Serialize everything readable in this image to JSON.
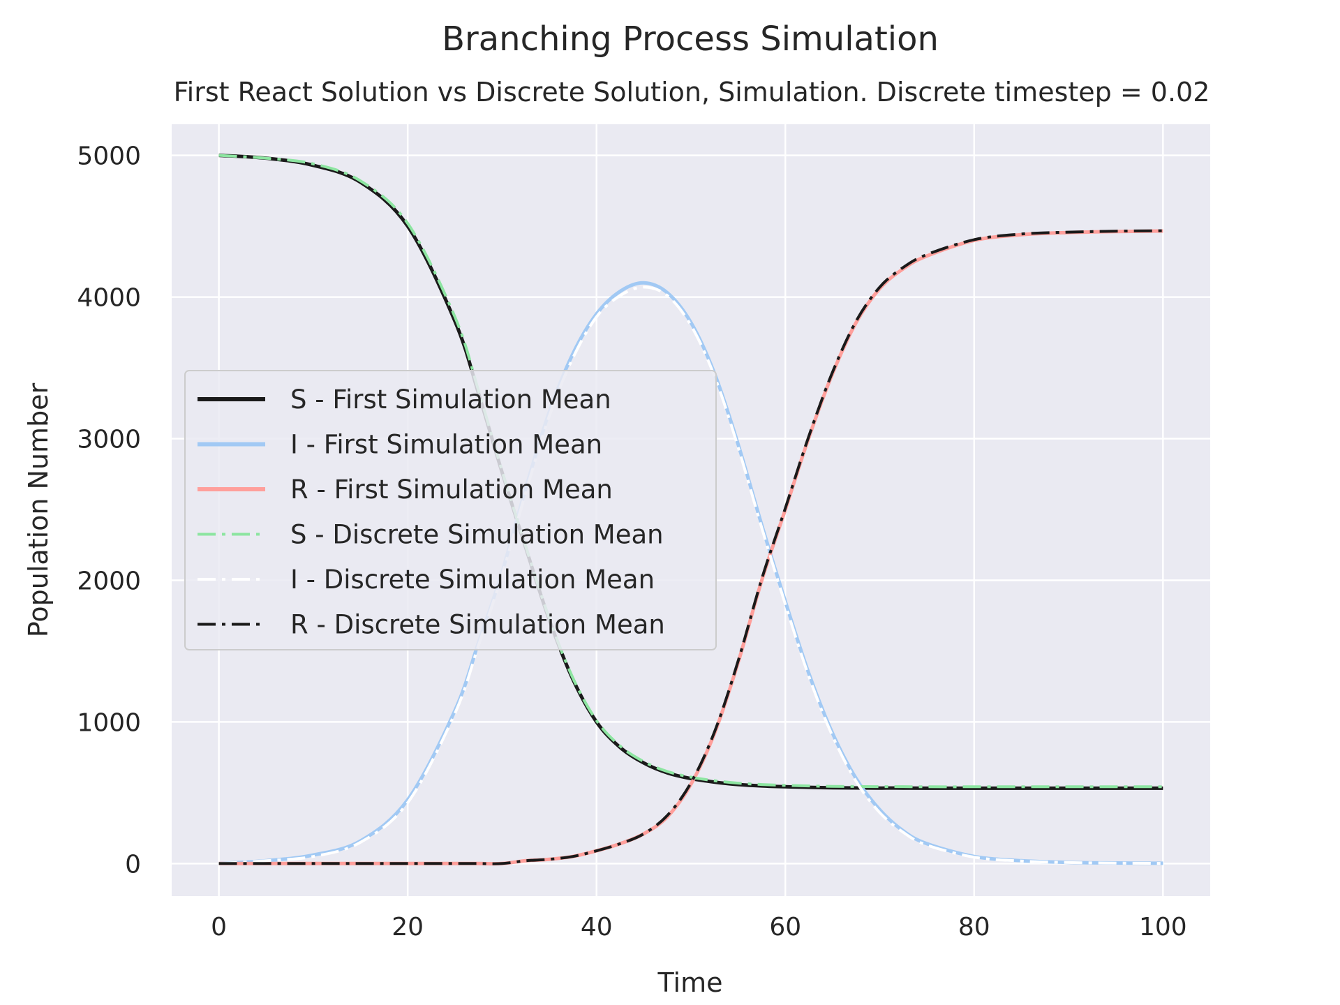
{
  "chart_data": {
    "type": "line",
    "title": "Branching Process Simulation",
    "subtitle": "First React Solution vs Discrete Solution, Simulation. Discrete timestep = 0.02",
    "xlabel": "Time",
    "ylabel": "Population Number",
    "xlim": [
      -5,
      105
    ],
    "ylim": [
      -230,
      5220
    ],
    "xticks": [
      0,
      20,
      40,
      60,
      80,
      100
    ],
    "yticks": [
      0,
      1000,
      2000,
      3000,
      4000,
      5000
    ],
    "grid": true,
    "legend_position": "center-left",
    "x": [
      0,
      5,
      10,
      15,
      20,
      25,
      27.5,
      30,
      32.5,
      35,
      37.5,
      40,
      42.5,
      45,
      47.5,
      50,
      52.5,
      55,
      57.5,
      60,
      62.5,
      65,
      67.5,
      70,
      72.5,
      75,
      80,
      85,
      90,
      95,
      100
    ],
    "series": [
      {
        "name": "S - First Simulation Mean",
        "color": "#1a1a1a",
        "dash": "solid",
        "width": 5,
        "values": [
          5000,
          4980,
          4930,
          4810,
          4500,
          3830,
          3320,
          2760,
          2230,
          1720,
          1300,
          1000,
          820,
          710,
          640,
          600,
          575,
          558,
          548,
          542,
          538,
          535,
          534,
          533,
          533,
          532,
          532,
          532,
          532,
          532,
          532
        ]
      },
      {
        "name": "I - First Simulation Mean",
        "color": "#a1c9f4",
        "dash": "solid",
        "width": 5,
        "values": [
          0,
          20,
          60,
          160,
          450,
          1080,
          1560,
          2060,
          2650,
          3190,
          3600,
          3880,
          4040,
          4100,
          4030,
          3820,
          3460,
          2960,
          2390,
          1850,
          1340,
          920,
          600,
          380,
          230,
          140,
          50,
          20,
          8,
          4,
          2
        ]
      },
      {
        "name": "R - First Simulation Mean",
        "color": "#ff9f9b",
        "dash": "solid",
        "width": 5,
        "values": [
          0,
          0,
          0,
          0,
          0,
          0,
          0,
          0,
          20,
          30,
          50,
          90,
          140,
          210,
          330,
          560,
          920,
          1420,
          2000,
          2500,
          3010,
          3460,
          3820,
          4060,
          4200,
          4290,
          4400,
          4440,
          4455,
          4462,
          4466
        ]
      },
      {
        "name": "S - Discrete Simulation Mean",
        "color": "#8de5a1",
        "dash": "dashdot",
        "width": 4,
        "values": [
          5000,
          4980,
          4940,
          4820,
          4520,
          3860,
          3340,
          2770,
          2240,
          1730,
          1310,
          1010,
          830,
          720,
          650,
          610,
          585,
          568,
          558,
          552,
          548,
          545,
          544,
          543,
          543,
          542,
          542,
          542,
          542,
          542,
          542
        ]
      },
      {
        "name": "I - Discrete Simulation Mean",
        "color": "#ffffff",
        "dash": "dashdot",
        "width": 4,
        "values": [
          0,
          20,
          50,
          150,
          430,
          1060,
          1540,
          2040,
          2620,
          3160,
          3570,
          3860,
          4010,
          4070,
          4010,
          3800,
          3440,
          2940,
          2370,
          1830,
          1320,
          900,
          580,
          360,
          220,
          130,
          45,
          18,
          7,
          3,
          1
        ]
      },
      {
        "name": "R - Discrete Simulation Mean",
        "color": "#1a1a1a",
        "dash": "dashdot",
        "width": 4,
        "values": [
          0,
          0,
          0,
          0,
          0,
          0,
          0,
          0,
          20,
          30,
          50,
          90,
          140,
          210,
          340,
          570,
          930,
          1430,
          2010,
          2510,
          3020,
          3470,
          3830,
          4070,
          4210,
          4300,
          4405,
          4445,
          4458,
          4465,
          4468
        ]
      }
    ]
  }
}
